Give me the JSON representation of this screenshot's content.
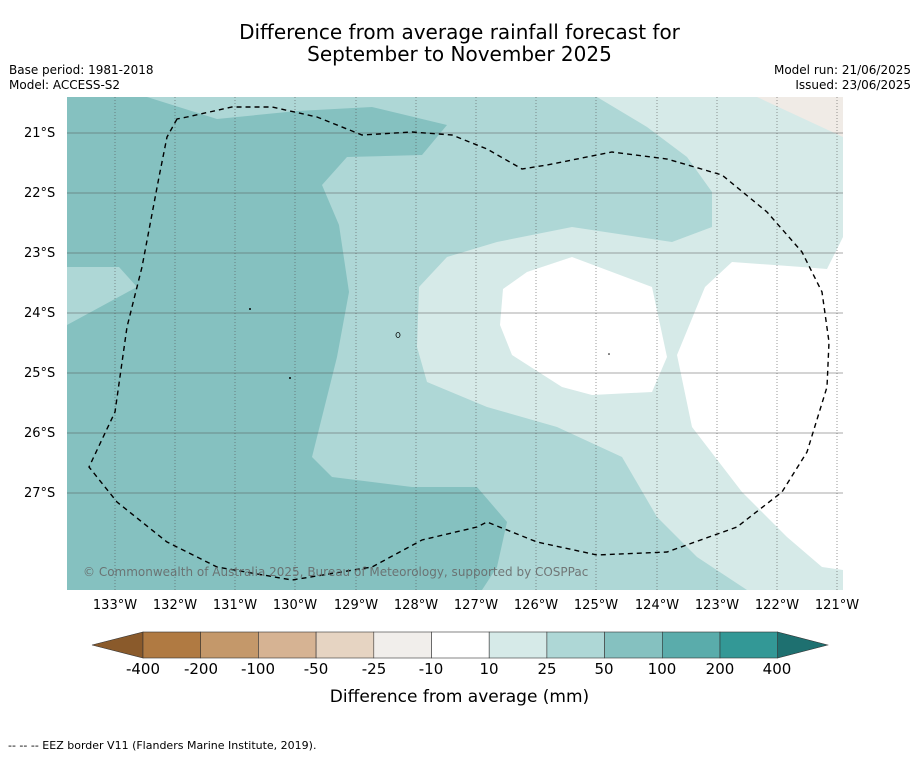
{
  "title": {
    "line1": "Difference from average rainfall forecast for",
    "line2": "September to November 2025"
  },
  "meta": {
    "base_period": "Base period: 1981-2018",
    "model": "Model: ACCESS-S2",
    "model_run": "Model run: 21/06/2025",
    "issued": "Issued: 23/06/2025"
  },
  "map": {
    "copyright": "© Commonwealth of Australia 2025, Bureau of Meteorology, supported by COSPPac",
    "lat_labels": [
      "21°S",
      "22°S",
      "23°S",
      "24°S",
      "25°S",
      "26°S",
      "27°S"
    ],
    "lon_labels": [
      "133°W",
      "132°W",
      "131°W",
      "130°W",
      "129°W",
      "128°W",
      "127°W",
      "126°W",
      "125°W",
      "124°W",
      "123°W",
      "122°W",
      "121°W"
    ],
    "colors": {
      "land_dry": "#f0ebe6",
      "very_light_teal": "#d6eae8",
      "light_teal": "#aed7d6",
      "mid_teal": "#85c1c0",
      "white": "#ffffff",
      "gridline": "#555555"
    }
  },
  "colorbar": {
    "title": "Difference from average (mm)",
    "labels": [
      "-400",
      "-200",
      "-100",
      "-50",
      "-25",
      "-10",
      "10",
      "25",
      "50",
      "100",
      "200",
      "400"
    ],
    "colors": [
      "#8a5a2b",
      "#b07a42",
      "#c4986a",
      "#d6b393",
      "#e6d4c2",
      "#f1eeeb",
      "#ffffff",
      "#d6eae8",
      "#aed7d6",
      "#85c1c0",
      "#5aacab",
      "#339896",
      "#1e7070"
    ]
  },
  "footer": {
    "eez_note": "--  --  -- EEZ border V11 (Flanders Marine Institute, 2019)."
  }
}
